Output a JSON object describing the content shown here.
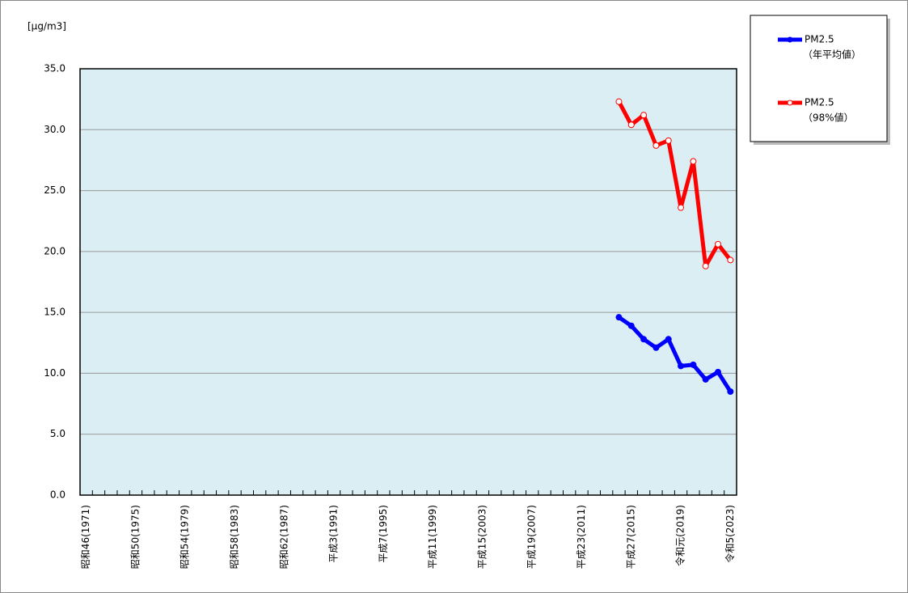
{
  "chart_data": {
    "type": "line",
    "y_unit_label": "[μg/m3]",
    "categories": [
      "昭和46(1971)",
      null,
      null,
      null,
      "昭和50(1975)",
      null,
      null,
      null,
      "昭和54(1979)",
      null,
      null,
      null,
      "昭和58(1983)",
      null,
      null,
      null,
      "昭和62(1987)",
      null,
      null,
      null,
      "平成3(1991)",
      null,
      null,
      null,
      "平成7(1995)",
      null,
      null,
      null,
      "平成11(1999)",
      null,
      null,
      null,
      "平成15(2003)",
      null,
      null,
      null,
      "平成19(2007)",
      null,
      null,
      null,
      "平成23(2011)",
      null,
      null,
      null,
      "平成27(2015)",
      null,
      null,
      null,
      "令和元(2019)",
      null,
      null,
      null,
      "令和5(2023)"
    ],
    "series": [
      {
        "name": "PM2.5",
        "subname": "（年平均値）",
        "color": "#0000ff",
        "marker": "filled",
        "values": [
          null,
          null,
          null,
          null,
          null,
          null,
          null,
          null,
          null,
          null,
          null,
          null,
          null,
          null,
          null,
          null,
          null,
          null,
          null,
          null,
          null,
          null,
          null,
          null,
          null,
          null,
          null,
          null,
          null,
          null,
          null,
          null,
          null,
          null,
          null,
          null,
          null,
          null,
          null,
          null,
          null,
          null,
          null,
          14.6,
          13.9,
          12.8,
          12.1,
          12.8,
          10.6,
          10.7,
          9.5,
          10.1,
          8.5
        ]
      },
      {
        "name": "PM2.5",
        "subname": "（98%値）",
        "color": "#ff0000",
        "marker": "hollow",
        "values": [
          null,
          null,
          null,
          null,
          null,
          null,
          null,
          null,
          null,
          null,
          null,
          null,
          null,
          null,
          null,
          null,
          null,
          null,
          null,
          null,
          null,
          null,
          null,
          null,
          null,
          null,
          null,
          null,
          null,
          null,
          null,
          null,
          null,
          null,
          null,
          null,
          null,
          null,
          null,
          null,
          null,
          null,
          null,
          32.3,
          30.4,
          31.2,
          28.7,
          29.1,
          23.6,
          27.4,
          18.8,
          20.6,
          19.3
        ]
      }
    ],
    "ylim": [
      0,
      35
    ],
    "yticks": [
      {
        "value": 0,
        "label": "0.0"
      },
      {
        "value": 5,
        "label": "5.0"
      },
      {
        "value": 10,
        "label": "10.0"
      },
      {
        "value": 15,
        "label": "15.0"
      },
      {
        "value": 20,
        "label": "20.0"
      },
      {
        "value": 25,
        "label": "25.0"
      },
      {
        "value": 30,
        "label": "30.0"
      },
      {
        "value": 35,
        "label": "35.0"
      }
    ],
    "grid": true,
    "plot_background": "#dbeef4",
    "legend": "outside-right"
  }
}
